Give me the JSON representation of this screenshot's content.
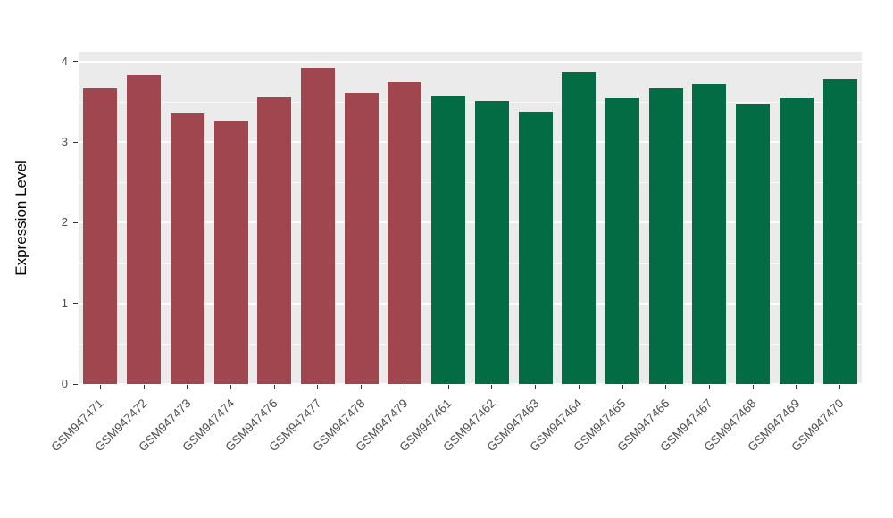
{
  "chart_data": {
    "type": "bar",
    "title": "",
    "xlabel": "",
    "ylabel": "Expression Level",
    "ylim": [
      0,
      4.12
    ],
    "yticks": [
      0,
      1,
      2,
      3,
      4
    ],
    "minor_ticks": [
      0.5,
      1.5,
      2.5,
      3.5
    ],
    "grid": "on",
    "legend": "none",
    "categories": [
      "GSM947471",
      "GSM947472",
      "GSM947473",
      "GSM947474",
      "GSM947476",
      "GSM947477",
      "GSM947478",
      "GSM947479",
      "GSM947461",
      "GSM947462",
      "GSM947463",
      "GSM947464",
      "GSM947465",
      "GSM947466",
      "GSM947467",
      "GSM947468",
      "GSM947469",
      "GSM947470"
    ],
    "values": [
      3.67,
      3.83,
      3.36,
      3.26,
      3.55,
      3.92,
      3.61,
      3.74,
      3.57,
      3.51,
      3.38,
      3.86,
      3.54,
      3.67,
      3.72,
      3.47,
      3.54,
      3.78
    ],
    "bar_colors": [
      "#A0464F",
      "#A0464F",
      "#A0464F",
      "#A0464F",
      "#A0464F",
      "#A0464F",
      "#A0464F",
      "#A0464F",
      "#046C45",
      "#046C45",
      "#046C45",
      "#046C45",
      "#046C45",
      "#046C45",
      "#046C45",
      "#046C45",
      "#046C45",
      "#046C45"
    ],
    "group_colors": {
      "group1": "#A0464F",
      "group2": "#046C45"
    }
  },
  "panel": {
    "background": "#EBEBEB",
    "gridline_color": "#FFFFFF"
  }
}
